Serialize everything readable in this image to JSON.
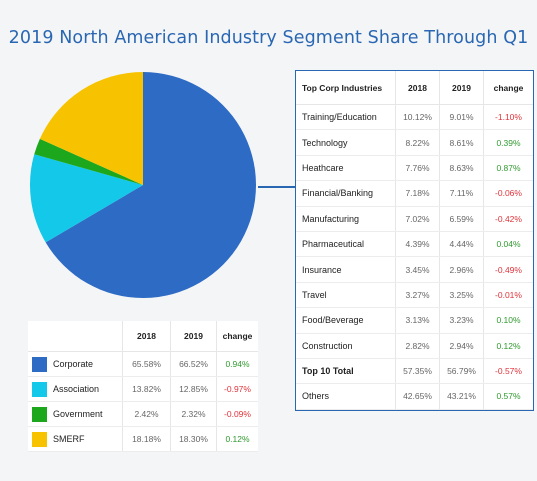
{
  "title": "2019 North American Industry Segment Share Through Q1",
  "chart_data": {
    "type": "pie",
    "series_year": "2019",
    "slices": [
      {
        "name": "Corporate",
        "value": 66.52,
        "color": "#2d6bc4"
      },
      {
        "name": "Association",
        "value": 12.85,
        "color": "#13c8e8"
      },
      {
        "name": "Government",
        "value": 2.32,
        "color": "#1ca71c"
      },
      {
        "name": "SMERF",
        "value": 18.3,
        "color": "#f7c300"
      }
    ],
    "start": "12 o'clock",
    "direction": "clockwise"
  },
  "segment_table": {
    "headers": [
      "",
      "2018",
      "2019",
      "change"
    ],
    "rows": [
      {
        "label": "Corporate",
        "color": "#2d6bc4",
        "y2018": "65.58%",
        "y2019": "66.52%",
        "change": "0.94%",
        "dir": "pos"
      },
      {
        "label": "Association",
        "color": "#13c8e8",
        "y2018": "13.82%",
        "y2019": "12.85%",
        "change": "-0.97%",
        "dir": "neg"
      },
      {
        "label": "Government",
        "color": "#1ca71c",
        "y2018": "2.42%",
        "y2019": "2.32%",
        "change": "-0.09%",
        "dir": "neg"
      },
      {
        "label": "SMERF",
        "color": "#f7c300",
        "y2018": "18.18%",
        "y2019": "18.30%",
        "change": "0.12%",
        "dir": "pos"
      }
    ]
  },
  "industry_table": {
    "headers": [
      "Top Corp Industries",
      "2018",
      "2019",
      "change"
    ],
    "rows": [
      {
        "label": "Training/Education",
        "y2018": "10.12%",
        "y2019": "9.01%",
        "change": "-1.10%",
        "dir": "neg"
      },
      {
        "label": "Technology",
        "y2018": "8.22%",
        "y2019": "8.61%",
        "change": "0.39%",
        "dir": "pos"
      },
      {
        "label": "Heathcare",
        "y2018": "7.76%",
        "y2019": "8.63%",
        "change": "0.87%",
        "dir": "pos"
      },
      {
        "label": "Financial/Banking",
        "y2018": "7.18%",
        "y2019": "7.11%",
        "change": "-0.06%",
        "dir": "neg"
      },
      {
        "label": "Manufacturing",
        "y2018": "7.02%",
        "y2019": "6.59%",
        "change": "-0.42%",
        "dir": "neg"
      },
      {
        "label": "Pharmaceutical",
        "y2018": "4.39%",
        "y2019": "4.44%",
        "change": "0.04%",
        "dir": "pos"
      },
      {
        "label": "Insurance",
        "y2018": "3.45%",
        "y2019": "2.96%",
        "change": "-0.49%",
        "dir": "neg"
      },
      {
        "label": "Travel",
        "y2018": "3.27%",
        "y2019": "3.25%",
        "change": "-0.01%",
        "dir": "neg"
      },
      {
        "label": "Food/Beverage",
        "y2018": "3.13%",
        "y2019": "3.23%",
        "change": "0.10%",
        "dir": "pos"
      },
      {
        "label": "Construction",
        "y2018": "2.82%",
        "y2019": "2.94%",
        "change": "0.12%",
        "dir": "pos"
      }
    ],
    "total": {
      "label": "Top 10 Total",
      "y2018": "57.35%",
      "y2019": "56.79%",
      "change": "-0.57%",
      "dir": "neg"
    },
    "others": {
      "label": "Others",
      "y2018": "42.65%",
      "y2019": "43.21%",
      "change": "0.57%",
      "dir": "pos"
    }
  },
  "colors": {
    "accent": "#2a67b3",
    "negative": "#e0333b",
    "positive": "#2f9a2f"
  }
}
